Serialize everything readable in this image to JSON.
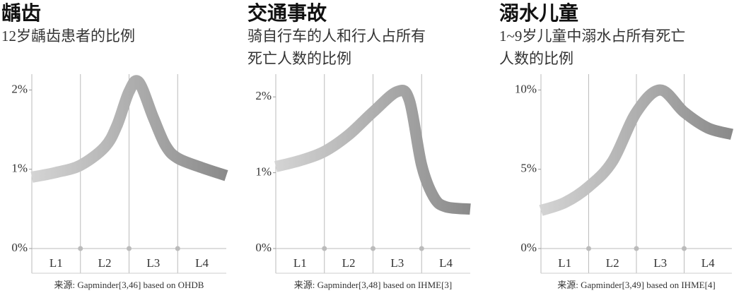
{
  "chart_data": [
    {
      "type": "line",
      "title": "龋齿",
      "subtitle": [
        "12岁龋齿患者的比例"
      ],
      "categories": [
        "L1",
        "L2",
        "L3",
        "L4"
      ],
      "x": [
        0,
        0.5,
        1,
        1.5,
        1.75,
        2,
        2.2,
        2.5,
        2.75,
        3,
        3.5,
        4
      ],
      "values": [
        0.9,
        0.96,
        1.05,
        1.28,
        1.55,
        1.98,
        2.1,
        1.65,
        1.3,
        1.14,
        1.02,
        0.92
      ],
      "xlim": [
        0,
        4
      ],
      "ylim": [
        0,
        2.2
      ],
      "yticks": [
        {
          "value": 0,
          "label": "0%"
        },
        {
          "value": 1,
          "label": "1%"
        },
        {
          "value": 2,
          "label": "2%"
        }
      ],
      "colors": [
        "#d4d4d4",
        "#8a8a8a"
      ],
      "source": "来源: Gapminder[3,46] based on OHDB"
    },
    {
      "type": "line",
      "title": "交通事故",
      "subtitle": [
        "骑自行车的人和行人占所有",
        "死亡人数的比例"
      ],
      "categories": [
        "L1",
        "L2",
        "L3",
        "L4"
      ],
      "x": [
        0,
        0.5,
        1,
        1.5,
        2,
        2.5,
        2.75,
        3,
        3.25,
        3.5,
        4
      ],
      "values": [
        1.08,
        1.16,
        1.28,
        1.5,
        1.8,
        2.07,
        1.95,
        1.1,
        0.68,
        0.55,
        0.52
      ],
      "xlim": [
        0,
        4
      ],
      "ylim": [
        0,
        2.3
      ],
      "yticks": [
        {
          "value": 0,
          "label": "0%"
        },
        {
          "value": 1,
          "label": "1%"
        },
        {
          "value": 2,
          "label": "2%"
        }
      ],
      "colors": [
        "#d4d4d4",
        "#8a8a8a"
      ],
      "source": "来源: Gapminder[3,48] based on IHME[3]"
    },
    {
      "type": "line",
      "title": "溺水儿童",
      "subtitle": [
        "1~9岁儿童中溺水占所有死亡",
        "人数的比例"
      ],
      "categories": [
        "L1",
        "L2",
        "L3",
        "L4"
      ],
      "x": [
        0,
        0.5,
        1,
        1.5,
        2,
        2.5,
        3,
        3.5,
        4
      ],
      "values": [
        2.4,
        2.9,
        3.9,
        5.5,
        8.6,
        10,
        8.6,
        7.6,
        7.2
      ],
      "xlim": [
        0,
        4
      ],
      "ylim": [
        0,
        11
      ],
      "yticks": [
        {
          "value": 0,
          "label": "0%"
        },
        {
          "value": 5,
          "label": "5%"
        },
        {
          "value": 10,
          "label": "10%"
        }
      ],
      "colors": [
        "#d4d4d4",
        "#8a8a8a"
      ],
      "source": "来源: Gapminder[3,49] based on IHME[4]"
    }
  ]
}
